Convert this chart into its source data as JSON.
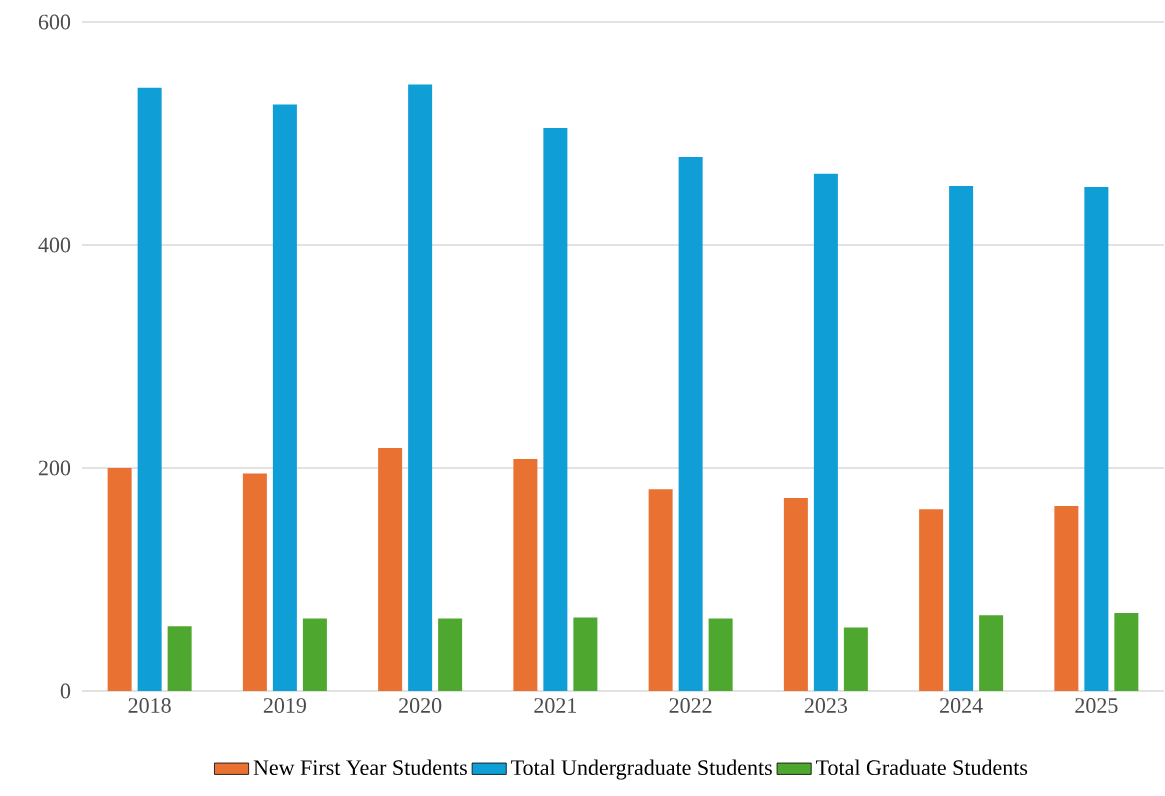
{
  "chart_data": {
    "type": "bar",
    "categories": [
      "2018",
      "2019",
      "2020",
      "2021",
      "2022",
      "2023",
      "2024",
      "2025"
    ],
    "series": [
      {
        "name": "New First Year Students",
        "color": "#e97132",
        "values": [
          200,
          195,
          218,
          208,
          181,
          173,
          163,
          166
        ]
      },
      {
        "name": "Total Undergraduate Students",
        "color": "#0f9ed5",
        "values": [
          541,
          526,
          544,
          505,
          479,
          464,
          453,
          452
        ]
      },
      {
        "name": "Total Graduate Students",
        "color": "#4ea72e",
        "values": [
          58,
          65,
          65,
          66,
          65,
          57,
          68,
          70
        ]
      }
    ],
    "ylim": [
      0,
      600
    ],
    "yticks": [
      0,
      200,
      400,
      600
    ],
    "grid": "y",
    "legend": "bottom"
  }
}
